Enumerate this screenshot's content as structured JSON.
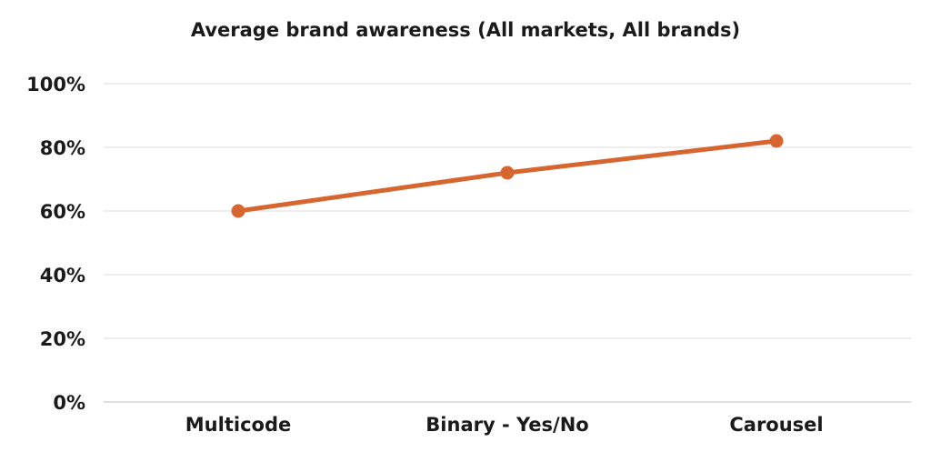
{
  "chart_data": {
    "type": "line",
    "title": "Average brand awareness (All markets, All brands)",
    "xlabel": "",
    "ylabel": "",
    "categories": [
      "Multicode",
      "Binary - Yes/No",
      "Carousel"
    ],
    "series": [
      {
        "values": [
          60,
          72,
          82
        ],
        "color": "#d7652f"
      }
    ],
    "ylim": [
      0,
      100
    ],
    "yticks": [
      0,
      20,
      40,
      60,
      80,
      100
    ],
    "ytick_labels": [
      "0%",
      "20%",
      "40%",
      "60%",
      "80%",
      "100%"
    ],
    "grid": true,
    "legend": "none"
  }
}
